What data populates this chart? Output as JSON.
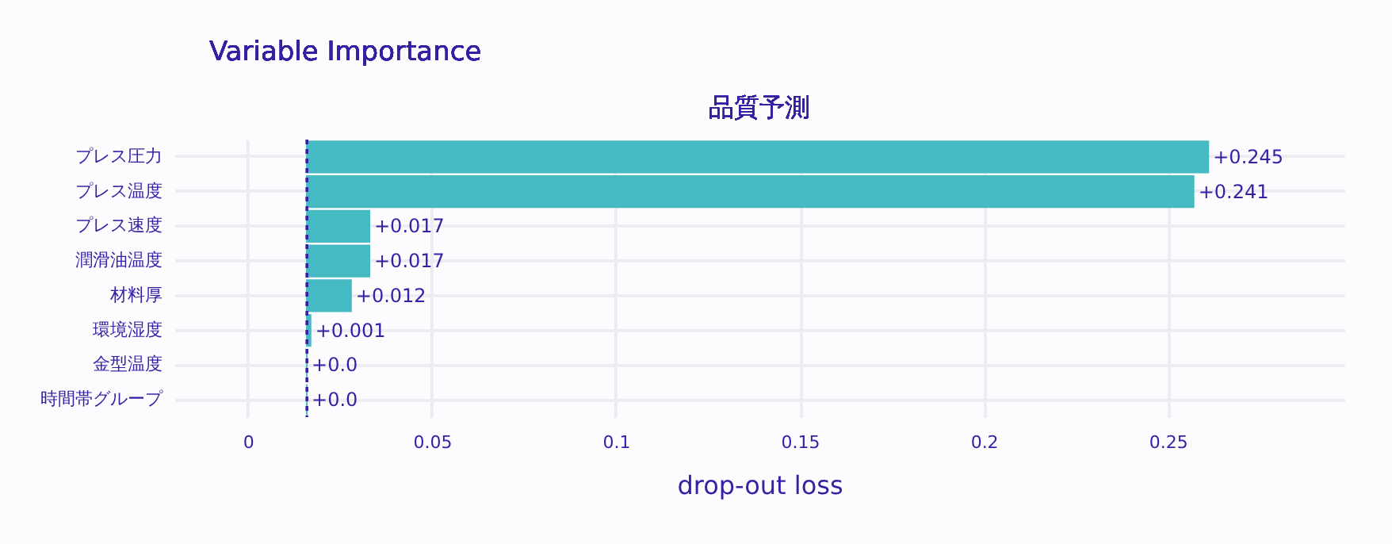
{
  "chart_data": {
    "type": "bar",
    "orientation": "horizontal",
    "title": "Variable Importance",
    "subtitle": "品質予測",
    "xlabel": "drop-out loss",
    "categories": [
      "プレス圧力",
      "プレス温度",
      "プレス速度",
      "潤滑油温度",
      "材料厚",
      "環境湿度",
      "金型温度",
      "時間帯グループ"
    ],
    "values": [
      0.245,
      0.241,
      0.017,
      0.017,
      0.012,
      0.001,
      0.0,
      0.0
    ],
    "base": [
      0.016,
      0.016,
      0.016,
      0.016,
      0.016,
      0.016,
      0.016,
      0.016
    ],
    "value_labels": [
      "+0.245",
      "+0.241",
      "+0.017",
      "+0.017",
      "+0.012",
      "+0.001",
      "+0.0",
      "+0.0"
    ],
    "color": "#46bac2",
    "xlim": [
      -0.02,
      0.298
    ],
    "xticks": [
      0,
      0.05,
      0.1,
      0.15,
      0.2,
      0.25
    ],
    "grid": true,
    "ref_lines": [
      {
        "axis": "x",
        "value": 0.016,
        "line_style": "dashed",
        "color": "#371ea3"
      }
    ]
  }
}
